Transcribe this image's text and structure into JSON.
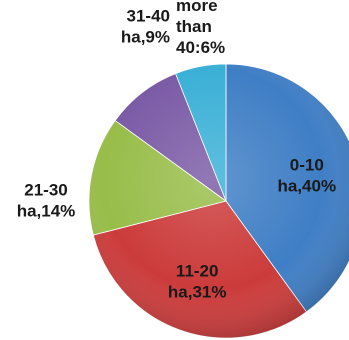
{
  "chart_data": {
    "type": "pie",
    "title": "",
    "start_angle_deg": 0,
    "direction": "clockwise",
    "slices": [
      {
        "category": "0-10 ha",
        "value": 40,
        "color": "#3f7ec5",
        "label_lines": [
          "0-10",
          "ha,40%"
        ],
        "label_color": "#1a1a1a",
        "label_position": "inside"
      },
      {
        "category": "11-20 ha",
        "value": 31,
        "color": "#cc3b3b",
        "label_lines": [
          "11-20",
          "ha,31%"
        ],
        "label_color": "#1a1a1a",
        "label_position": "inside"
      },
      {
        "category": "21-30 ha",
        "value": 14,
        "color": "#98bd4a",
        "label_lines": [
          "21-30",
          "ha,14%"
        ],
        "label_color": "#1a1a1a",
        "label_position": "outside-left"
      },
      {
        "category": "31-40 ha",
        "value": 9,
        "color": "#7b5ba6",
        "label_lines": [
          "31-40",
          "ha,9%"
        ],
        "label_color": "#1a1a1a",
        "label_position": "outside-top"
      },
      {
        "category": "more than 40",
        "value": 6,
        "color": "#3bb0d6",
        "label_lines": [
          "more",
          "than",
          "40:6%"
        ],
        "label_color": "#1a1a1a",
        "label_position": "outside-top"
      }
    ]
  }
}
